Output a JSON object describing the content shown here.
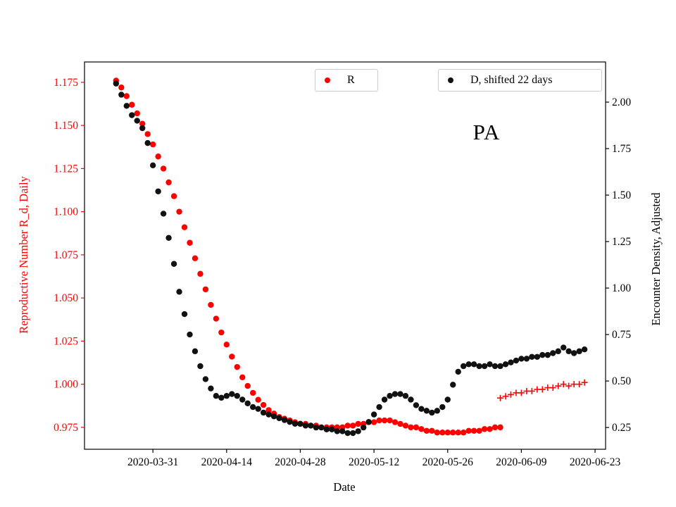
{
  "chart_data": {
    "type": "scatter",
    "title": "PA",
    "xlabel": "Date",
    "grid": false,
    "xlim": [
      "2020-03-18",
      "2020-06-25"
    ],
    "x_ticks": [
      "2020-03-31",
      "2020-04-14",
      "2020-04-28",
      "2020-05-12",
      "2020-05-26",
      "2020-06-09",
      "2020-06-23"
    ],
    "left_axis": {
      "label": "Reproductive Number R_d, Daily",
      "color": "#ff0000",
      "ticks": [
        0.975,
        1.0,
        1.025,
        1.05,
        1.075,
        1.1,
        1.125,
        1.15,
        1.175
      ],
      "lim": [
        0.9623,
        1.1868
      ],
      "tick_decimals": 3
    },
    "right_axis": {
      "label": "Encounter Density, Adjusted",
      "color": "#000000",
      "ticks": [
        0.25,
        0.5,
        0.75,
        1.0,
        1.25,
        1.5,
        1.75,
        2.0
      ],
      "lim": [
        0.133,
        2.216
      ],
      "tick_decimals": 2
    },
    "legend": [
      {
        "label": "R",
        "color": "#ff0000",
        "marker": "dot"
      },
      {
        "label": "D, shifted 22 days",
        "color": "#111111",
        "marker": "dot"
      }
    ],
    "series": [
      {
        "name": "R",
        "axis": "left",
        "marker": "dot",
        "color": "#ff0000",
        "start": "2020-03-24",
        "step_days": 1,
        "values": [
          1.176,
          1.172,
          1.167,
          1.162,
          1.157,
          1.151,
          1.145,
          1.139,
          1.132,
          1.125,
          1.117,
          1.109,
          1.1,
          1.091,
          1.082,
          1.073,
          1.064,
          1.055,
          1.046,
          1.038,
          1.03,
          1.023,
          1.016,
          1.01,
          1.004,
          0.999,
          0.995,
          0.991,
          0.988,
          0.985,
          0.983,
          0.981,
          0.98,
          0.979,
          0.978,
          0.977,
          0.977,
          0.976,
          0.976,
          0.975,
          0.975,
          0.975,
          0.975,
          0.975,
          0.976,
          0.976,
          0.977,
          0.977,
          0.978,
          0.978,
          0.979,
          0.979,
          0.979,
          0.978,
          0.977,
          0.976,
          0.975,
          0.975,
          0.974,
          0.973,
          0.973,
          0.972,
          0.972,
          0.972,
          0.972,
          0.972,
          0.972,
          0.973,
          0.973,
          0.973,
          0.974,
          0.974,
          0.975,
          0.975
        ]
      },
      {
        "name": "R recent",
        "axis": "left",
        "marker": "plus",
        "color": "#ff0000",
        "start": "2020-06-05",
        "step_days": 1,
        "values": [
          0.992,
          0.993,
          0.994,
          0.995,
          0.995,
          0.996,
          0.996,
          0.997,
          0.997,
          0.998,
          0.998,
          0.999,
          1.0,
          0.999,
          1.0,
          1.0,
          1.001
        ]
      },
      {
        "name": "D, shifted 22 days",
        "axis": "right",
        "marker": "dot",
        "color": "#111111",
        "start": "2020-03-24",
        "step_days": 1,
        "values": [
          2.1,
          2.04,
          1.98,
          1.93,
          1.9,
          1.86,
          1.78,
          1.66,
          1.52,
          1.4,
          1.27,
          1.13,
          0.98,
          0.86,
          0.75,
          0.66,
          0.58,
          0.51,
          0.46,
          0.42,
          0.41,
          0.42,
          0.43,
          0.42,
          0.4,
          0.38,
          0.36,
          0.35,
          0.33,
          0.32,
          0.31,
          0.3,
          0.29,
          0.28,
          0.27,
          0.27,
          0.26,
          0.26,
          0.25,
          0.25,
          0.24,
          0.24,
          0.23,
          0.23,
          0.22,
          0.22,
          0.23,
          0.25,
          0.28,
          0.32,
          0.36,
          0.4,
          0.42,
          0.43,
          0.43,
          0.42,
          0.4,
          0.37,
          0.35,
          0.34,
          0.33,
          0.34,
          0.36,
          0.4,
          0.48,
          0.55,
          0.58,
          0.59,
          0.59,
          0.58,
          0.58,
          0.59,
          0.58,
          0.58,
          0.59,
          0.6,
          0.61,
          0.62,
          0.62,
          0.63,
          0.63,
          0.64,
          0.64,
          0.65,
          0.66,
          0.68,
          0.66,
          0.65,
          0.66,
          0.67
        ]
      }
    ]
  }
}
